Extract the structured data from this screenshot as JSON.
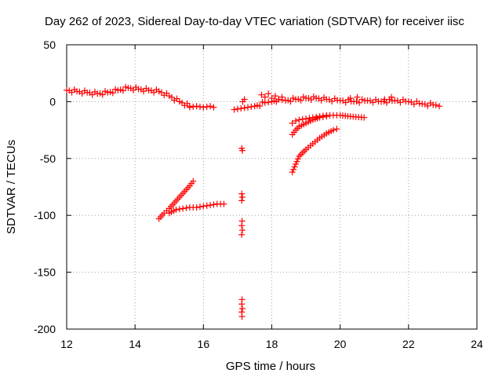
{
  "chart_data": {
    "type": "scatter",
    "title": "Day 262 of 2023, Sidereal Day-to-day VTEC variation (SDTVAR) for receiver iisc",
    "xlabel": "GPS time / hours",
    "ylabel": "SDTVAR / TECUs",
    "xlim": [
      12,
      24
    ],
    "ylim": [
      -200,
      50
    ],
    "xticks": [
      12,
      14,
      16,
      18,
      20,
      22,
      24
    ],
    "yticks": [
      -200,
      -150,
      -100,
      -50,
      0,
      50
    ],
    "grid": true,
    "marker": "+",
    "color": "#ff0000",
    "series": [
      {
        "name": "band-upper-left",
        "x": [
          12.0,
          12.3,
          12.6,
          12.9,
          13.2,
          13.5,
          13.8,
          14.1,
          14.4,
          14.7,
          15.0,
          15.3,
          15.6
        ],
        "y": [
          10,
          9,
          8,
          7,
          8,
          10,
          12,
          11,
          10,
          9,
          5,
          0,
          -4
        ]
      },
      {
        "name": "band-16h",
        "x": [
          15.6,
          15.8,
          16.0,
          16.2,
          16.3
        ],
        "y": [
          -5,
          -4,
          -5,
          -4,
          -5
        ]
      },
      {
        "name": "band-upper-right",
        "x": [
          16.9,
          17.1,
          17.3,
          17.5,
          17.8,
          18.0,
          18.2,
          18.4,
          18.7,
          19.0,
          19.3,
          19.6,
          20.0,
          20.4,
          20.8,
          21.2,
          21.6,
          22.0,
          22.4,
          22.8,
          22.9
        ],
        "y": [
          -7,
          -6,
          -5,
          -4,
          -1,
          0,
          2,
          1,
          2,
          3,
          3,
          2,
          1,
          0,
          1,
          0,
          1,
          0,
          -2,
          -3,
          -4
        ]
      },
      {
        "name": "upper-bursts",
        "x": [
          17.7,
          17.8,
          17.9,
          18.0,
          18.1,
          18.2,
          18.3,
          17.15,
          17.2,
          20.3,
          20.5,
          21.3,
          21.5
        ],
        "y": [
          6,
          4,
          7,
          3,
          5,
          2,
          4,
          0,
          2,
          3,
          4,
          2,
          4
        ]
      },
      {
        "name": "rising-segment-15h",
        "x": [
          14.7,
          14.85,
          15.0,
          15.15,
          15.3,
          15.45,
          15.6,
          15.7
        ],
        "y": [
          -103,
          -98,
          -94,
          -89,
          -84,
          -79,
          -74,
          -70
        ]
      },
      {
        "name": "flat-segment-16h",
        "x": [
          15.0,
          15.2,
          15.4,
          15.6,
          15.8,
          16.0,
          16.2,
          16.4,
          16.6
        ],
        "y": [
          -98,
          -95,
          -94,
          -93,
          -93,
          -92,
          -91,
          -90,
          -90
        ]
      },
      {
        "name": "vertical-cluster-17h",
        "x": [
          17.12,
          17.14,
          17.12,
          17.14,
          17.12,
          17.13,
          17.12,
          17.14,
          17.12,
          17.13,
          17.12,
          17.14,
          17.12,
          17.13
        ],
        "y": [
          -41,
          -43,
          -81,
          -84,
          -87,
          -105,
          -109,
          -113,
          -117,
          -174,
          -178,
          -182,
          -185,
          -189
        ]
      },
      {
        "name": "rising-arc-19h",
        "x": [
          18.6,
          18.7,
          18.8,
          19.0,
          19.2,
          19.4,
          19.6,
          19.8,
          19.9
        ],
        "y": [
          -62,
          -55,
          -48,
          -42,
          -37,
          -32,
          -28,
          -25,
          -24
        ]
      },
      {
        "name": "arc-mid-19h",
        "x": [
          18.6,
          18.7,
          18.8,
          19.0,
          19.2,
          19.4,
          19.6,
          19.8,
          20.0,
          20.3,
          20.7
        ],
        "y": [
          -19,
          -17,
          -16,
          -15,
          -14,
          -13,
          -12,
          -12,
          -12,
          -13,
          -14
        ]
      },
      {
        "name": "arc-low-19h",
        "x": [
          18.6,
          18.7,
          18.8,
          19.0,
          19.2,
          19.4,
          19.6
        ],
        "y": [
          -29,
          -25,
          -22,
          -19,
          -16,
          -14,
          -13
        ]
      }
    ]
  }
}
